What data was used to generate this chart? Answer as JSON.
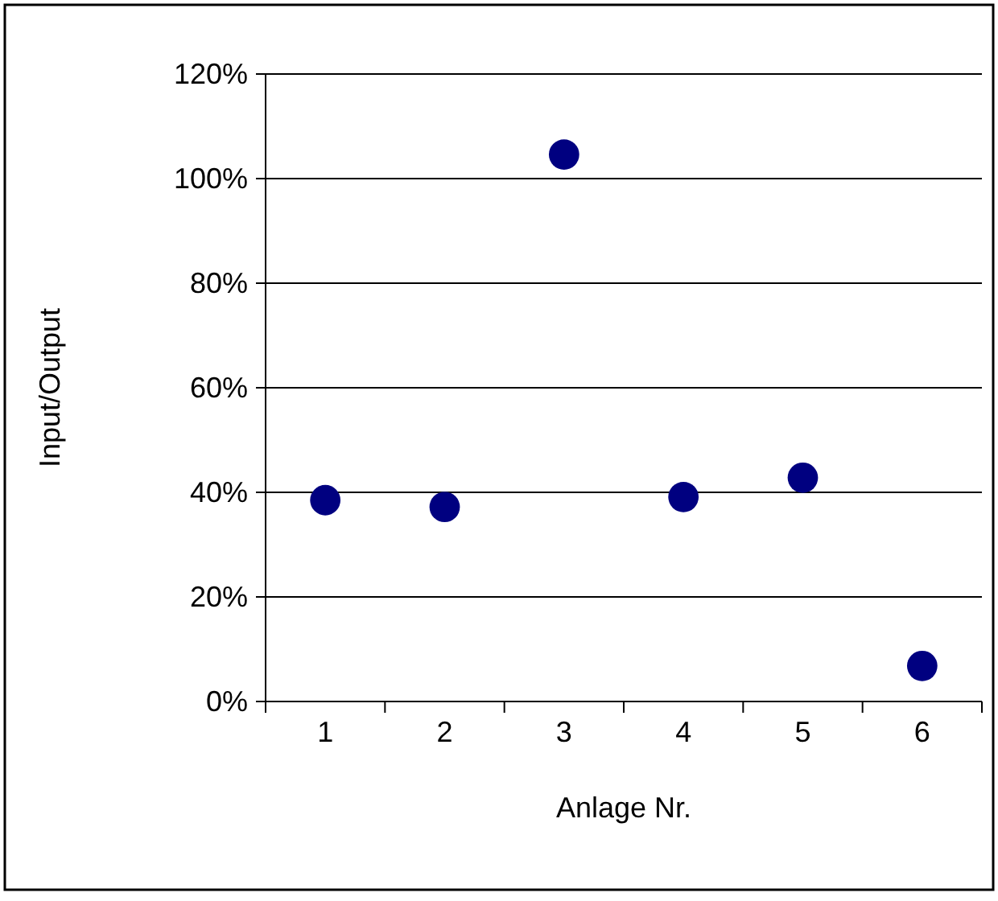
{
  "chart_data": {
    "type": "scatter",
    "xlabel": "Anlage Nr.",
    "ylabel": "Input/Output",
    "categories": [
      "1",
      "2",
      "3",
      "4",
      "5",
      "6"
    ],
    "series": [
      {
        "color": "#000080",
        "values": [
          38.5,
          37.2,
          104.6,
          39.1,
          42.8,
          6.8
        ]
      }
    ],
    "ylim": [
      0,
      120
    ],
    "yticks": [
      {
        "value": 0,
        "label": "0%"
      },
      {
        "value": 20,
        "label": "20%"
      },
      {
        "value": 40,
        "label": "40%"
      },
      {
        "value": 60,
        "label": "60%"
      },
      {
        "value": 80,
        "label": "80%"
      },
      {
        "value": 100,
        "label": "100%"
      },
      {
        "value": 120,
        "label": "120%"
      }
    ],
    "grid": "y",
    "marker": "circle"
  }
}
